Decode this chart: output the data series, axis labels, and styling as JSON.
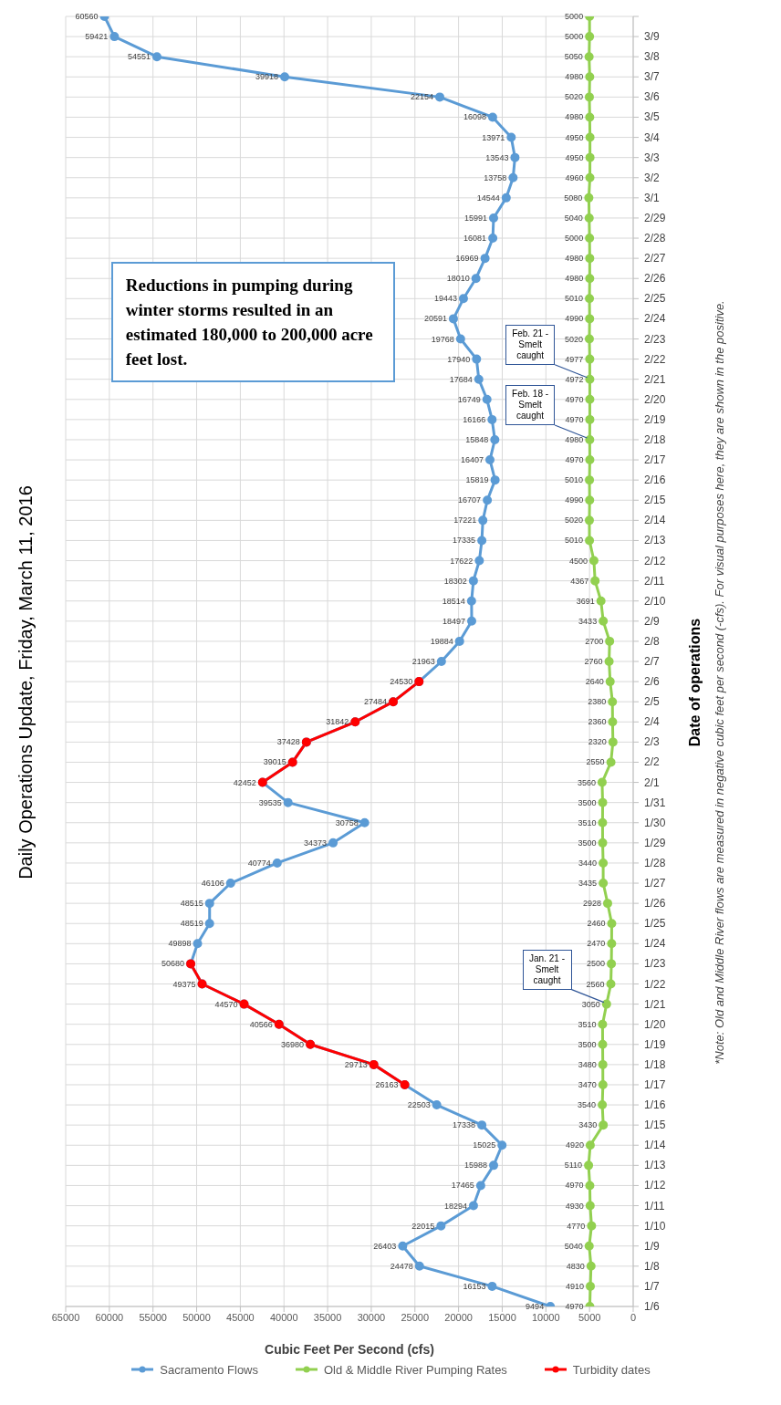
{
  "chart_data": {
    "type": "line",
    "orientation": "horizontal",
    "title": "Daily Operations Update, Friday, March 11, 2016",
    "xlabel": "Cubic Feet Per Second (cfs)",
    "ylabel": "Date of operations",
    "categories": [
      null,
      "3/9",
      "3/8",
      "3/7",
      "3/6",
      "3/5",
      "3/4",
      "3/3",
      "3/2",
      "3/1",
      "2/29",
      "2/28",
      "2/27",
      "2/26",
      "2/25",
      "2/24",
      "2/23",
      "2/22",
      "2/21",
      "2/20",
      "2/19",
      "2/18",
      "2/17",
      "2/16",
      "2/15",
      "2/14",
      "2/13",
      "2/12",
      "2/11",
      "2/10",
      "2/9",
      "2/8",
      "2/7",
      "2/6",
      "2/5",
      "2/4",
      "2/3",
      "2/2",
      "2/1",
      "1/31",
      "1/30",
      "1/29",
      "1/28",
      "1/27",
      "1/26",
      "1/25",
      "1/24",
      "1/23",
      "1/22",
      "1/21",
      "1/20",
      "1/19",
      "1/18",
      "1/17",
      "1/16",
      "1/15",
      "1/14",
      "1/13",
      "1/12",
      "1/11",
      "1/10",
      "1/9",
      "1/8",
      "1/7",
      "1/6"
    ],
    "series": [
      {
        "name": "Sacramento Flows",
        "color": "#5b9bd5",
        "values": [
          60560,
          59421,
          54551,
          39918,
          22154,
          16098,
          13971,
          13543,
          13758,
          14544,
          15991,
          16081,
          16969,
          18010,
          19443,
          20591,
          19768,
          17940,
          17684,
          16749,
          16166,
          15848,
          16407,
          15819,
          16707,
          17221,
          17335,
          17622,
          18302,
          18514,
          18497,
          19884,
          21963,
          24530,
          27484,
          31842,
          37428,
          39015,
          42452,
          39535,
          30758,
          34373,
          40774,
          46106,
          48515,
          48519,
          49898,
          50680,
          49375,
          44570,
          40566,
          36980,
          29713,
          26163,
          22503,
          17338,
          15025,
          15988,
          17465,
          18294,
          22015,
          26403,
          24478,
          16153,
          9494
        ],
        "value_labels": [
          "60560",
          "59421",
          "54551",
          "39918",
          "22154",
          "16098",
          "13971",
          "13543",
          "13758",
          "14544",
          "15991",
          "16081",
          "16969",
          "18010",
          "19443",
          "20591",
          "19768",
          "17940",
          "17684",
          "16749",
          "16166",
          "15848",
          "16407",
          "15819",
          "16707",
          "17221",
          "17335",
          "17622",
          "18302",
          "18514",
          "18497",
          "19884",
          "21963",
          "24530",
          "27484",
          "31842",
          "37428",
          "39015",
          "42452",
          "39535",
          "30758",
          "34373",
          "40774",
          "46106",
          "48515",
          "48519",
          "49898",
          "50680",
          "49375",
          "44570",
          "40566",
          "36980",
          "29713",
          "26163",
          "22503",
          "17338",
          "15025",
          "15988",
          "17465",
          "18294",
          "22015",
          "26403",
          "24478",
          "16153",
          "9494"
        ]
      },
      {
        "name": "Old & Middle River Pumping Rates",
        "color": "#92d050",
        "values": [
          5000,
          5000,
          5050,
          4980,
          5020,
          4980,
          4950,
          4950,
          4960,
          5080,
          5040,
          5000,
          4980,
          4980,
          5010,
          4990,
          5020,
          4977,
          4972,
          4970,
          4970,
          4980,
          4970,
          5010,
          4990,
          5020,
          5010,
          4500,
          4367,
          3691,
          3433,
          2700,
          2760,
          2640,
          2380,
          2360,
          2320,
          2550,
          3560,
          3500,
          3510,
          3500,
          3440,
          3435,
          2928,
          2460,
          2470,
          2500,
          2560,
          3050,
          3510,
          3500,
          3480,
          3470,
          3540,
          3430,
          4920,
          5110,
          4970,
          4930,
          4770,
          5040,
          4830,
          4910,
          4970
        ],
        "value_labels": [
          "5000",
          "5000",
          "5050",
          "4980",
          "5020",
          "4980",
          "4950",
          "4950",
          "4960",
          "5080",
          "5040",
          "5000",
          "4980",
          "4980",
          "5010",
          "4990",
          "5020",
          "4977",
          "4972",
          "4970",
          "4970",
          "4980",
          "4970",
          "5010",
          "4990",
          "5020",
          "5010",
          "4500",
          "4367",
          "3691",
          "3433",
          "2700",
          "2760",
          "2640",
          "2380",
          "2360",
          "2320",
          "2550",
          "3560",
          "3500",
          "3510",
          "3500",
          "3440",
          "3435",
          "2928",
          "2460",
          "2470",
          "2500",
          "2560",
          "3050",
          "3510",
          "3500",
          "3480",
          "3470",
          "3540",
          "3430",
          "4920",
          "5110",
          "4970",
          "4930",
          "4770",
          "5040",
          "4830",
          "4910",
          "4970"
        ]
      },
      {
        "name": "Turbidity dates",
        "color": "#ff0000",
        "values": [
          null,
          null,
          null,
          null,
          null,
          null,
          null,
          null,
          null,
          null,
          null,
          null,
          null,
          null,
          null,
          null,
          null,
          null,
          null,
          null,
          null,
          null,
          null,
          null,
          null,
          null,
          null,
          null,
          null,
          null,
          null,
          null,
          null,
          24530,
          27484,
          31842,
          37428,
          39015,
          42452,
          null,
          null,
          null,
          null,
          null,
          null,
          null,
          null,
          50680,
          49375,
          44570,
          40566,
          36980,
          29713,
          26163,
          null,
          null,
          null,
          null,
          null,
          null,
          null,
          null,
          null,
          null,
          null
        ]
      }
    ],
    "xlim": [
      65000,
      0
    ],
    "xticks": [
      65000,
      60000,
      55000,
      50000,
      45000,
      40000,
      35000,
      30000,
      25000,
      20000,
      15000,
      10000,
      5000,
      0
    ],
    "grid": true,
    "legend": "bottom",
    "marker": "circle",
    "line_style": "solid",
    "annotations": [
      "Reductions in pumping during winter storms resulted in an estimated 180,000 to 200,000 acre feet lost.",
      {
        "text": "Jan. 21 - Smelt caught",
        "x": 3050,
        "y": "1/21"
      },
      {
        "text": "Feb. 18 - Smelt caught",
        "x": 4980,
        "y": "2/18"
      },
      {
        "text": "Feb. 21 - Smelt caught",
        "x": 4972,
        "y": "2/21"
      },
      "*Note: Old and Middle River flows are measured in negative cubic feet per second (-cfs). For visual purposes here, they are shown in the positive."
    ]
  }
}
